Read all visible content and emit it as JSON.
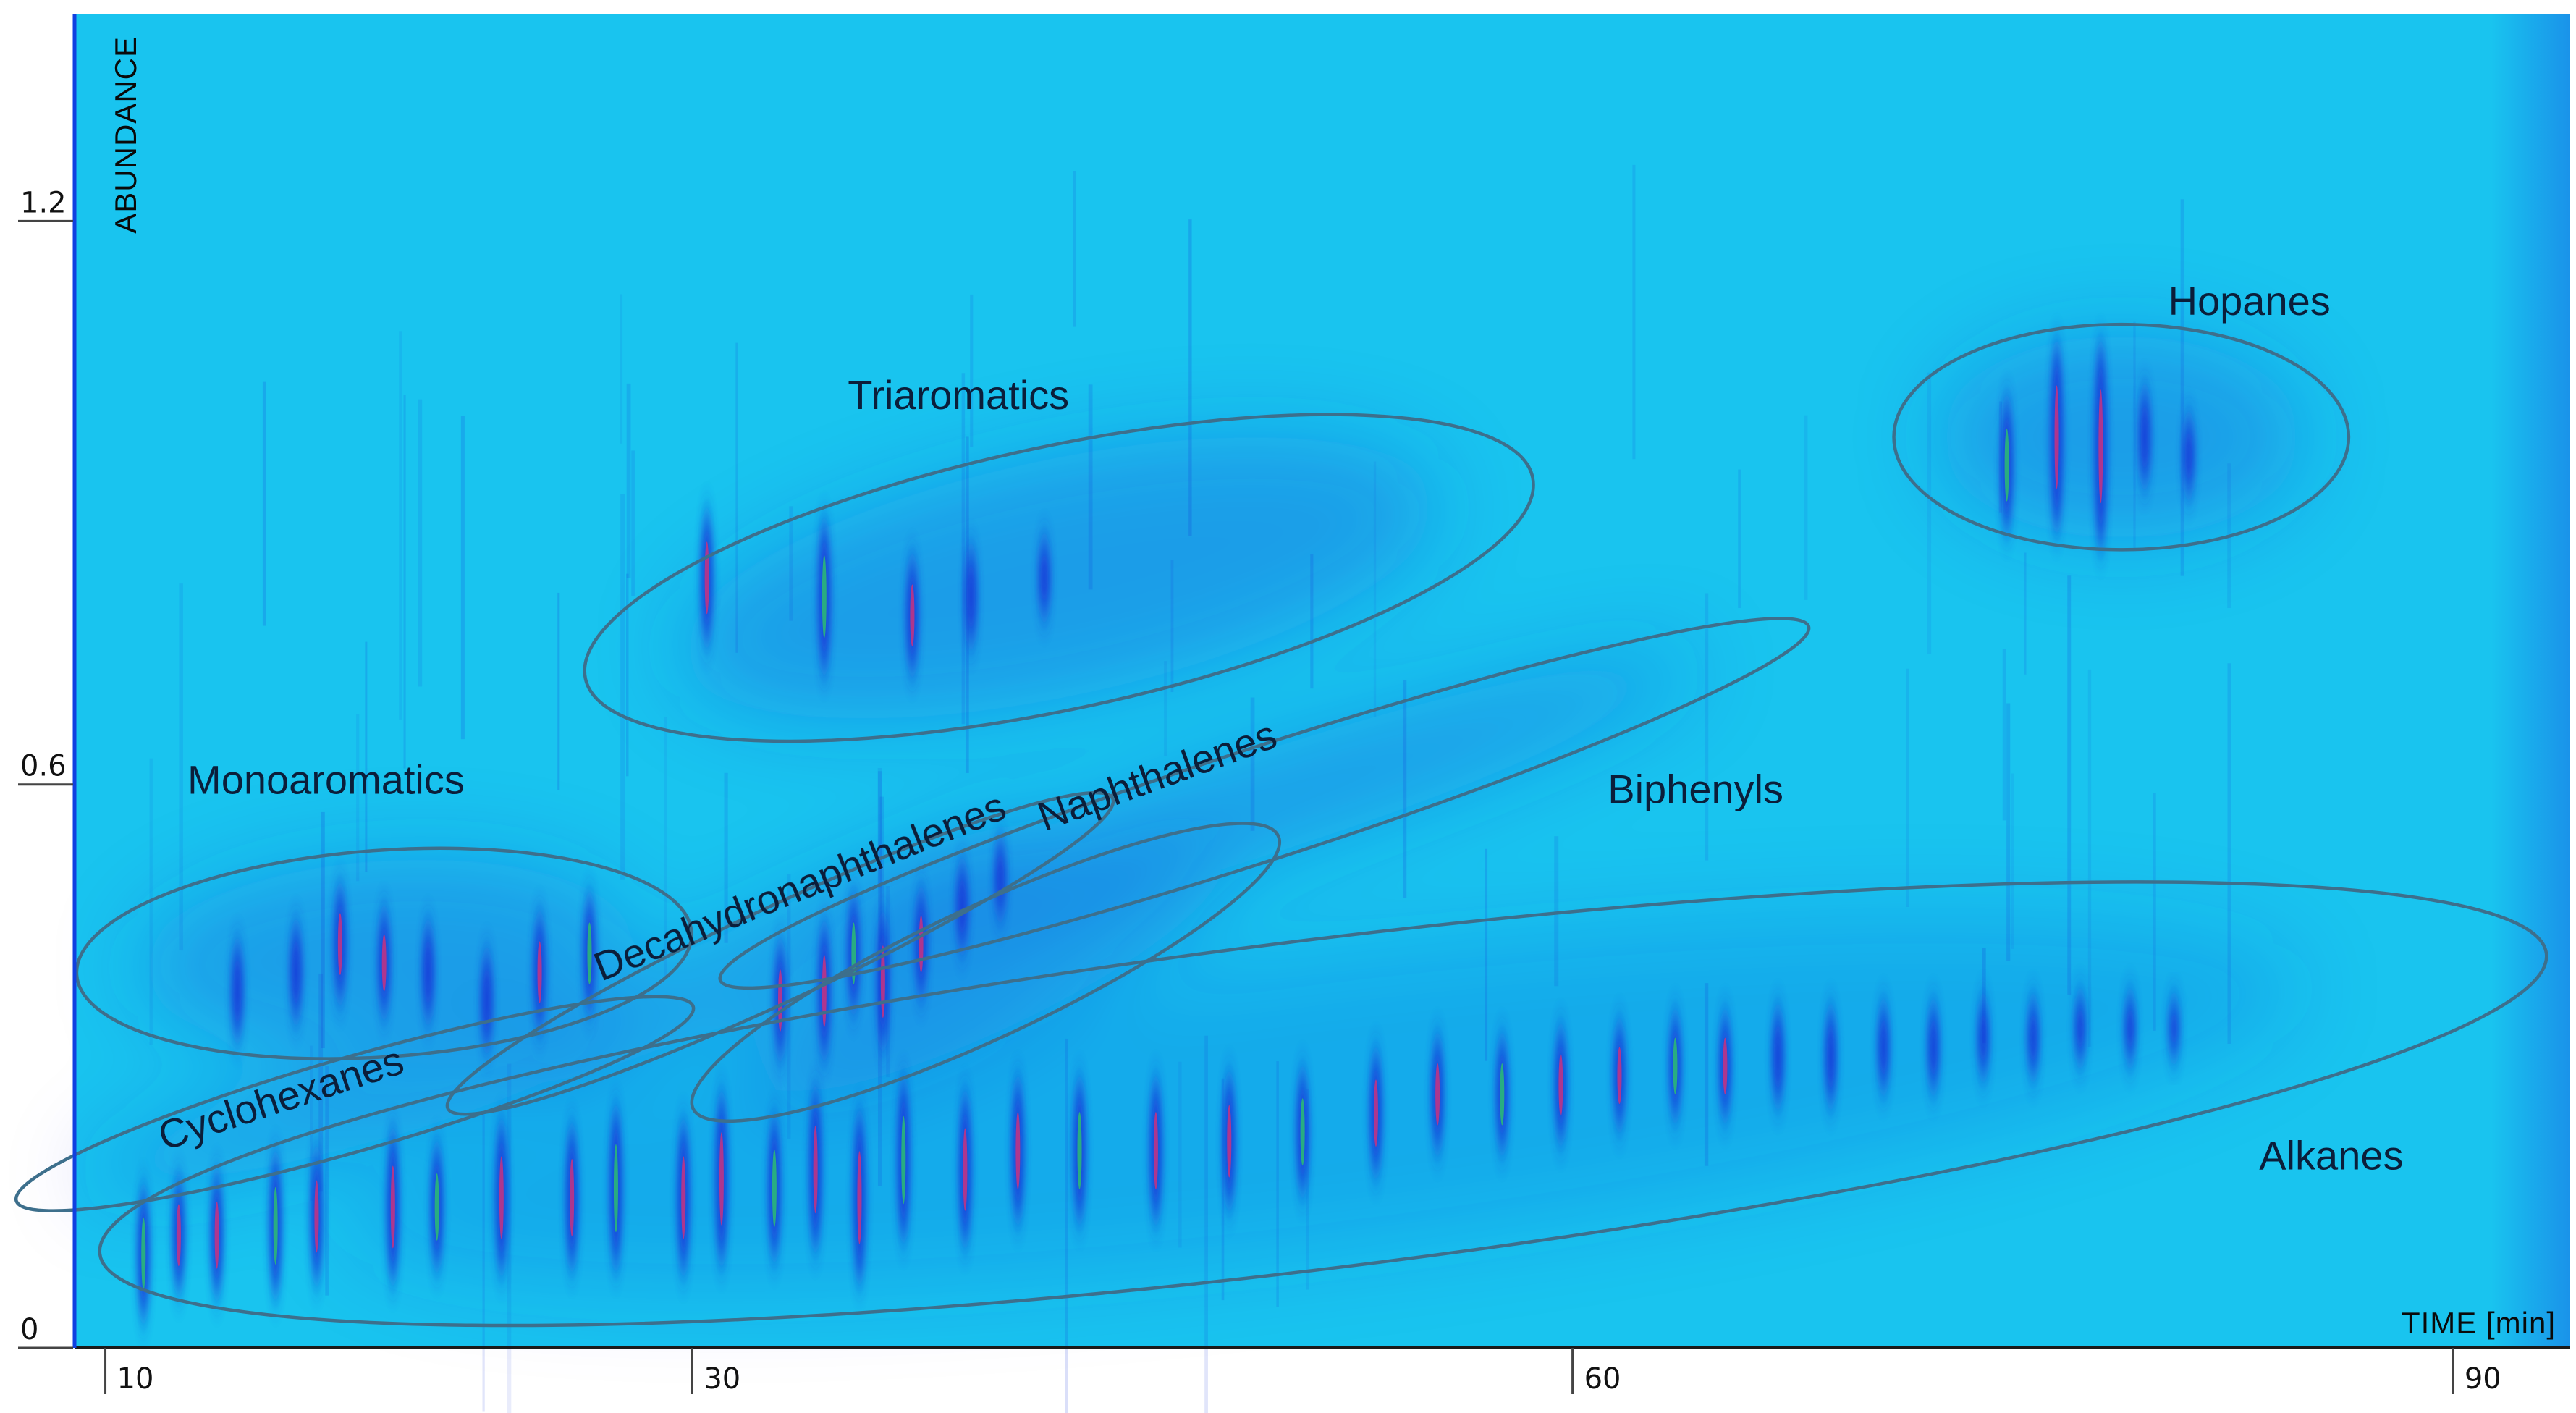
{
  "chart_data": {
    "type": "heatmap",
    "title": "",
    "xlabel": "TIME [min]",
    "ylabel": "ABUNDANCE",
    "x_ticks": [
      "10",
      "30",
      "60",
      "90"
    ],
    "y_ticks": [
      "0",
      "0.6",
      "1.2"
    ],
    "xlim": [
      9,
      94
    ],
    "ylim": [
      0,
      1.42
    ],
    "colors": {
      "background": "#19c4ef",
      "peak": "#1535d8",
      "peak_core": "#d4307a",
      "peak_core_alt": "#2ec46a",
      "ellipse": "#3d6f8c",
      "axis": "#1a1a1a"
    },
    "regions": [
      {
        "label": "Triaromatics",
        "cx": 42.5,
        "cy": 0.82,
        "w": 33.0,
        "h": 0.28,
        "angle": -12,
        "label_x": 35.3,
        "label_y": 1.0,
        "label_angle": 0
      },
      {
        "label": "Hopanes",
        "cx": 78.7,
        "cy": 0.97,
        "w": 15.5,
        "h": 0.24,
        "angle": 0,
        "label_x": 80.3,
        "label_y": 1.1,
        "label_angle": 0
      },
      {
        "label": "Biphenyls",
        "cx": 49.5,
        "cy": 0.58,
        "w": 39.0,
        "h": 0.12,
        "angle": -18,
        "label_x": 61.2,
        "label_y": 0.58,
        "label_angle": 0
      },
      {
        "label": "Monoaromatics",
        "cx": 19.5,
        "cy": 0.42,
        "w": 21.0,
        "h": 0.22,
        "angle": -4,
        "label_x": 12.8,
        "label_y": 0.59,
        "label_angle": 0
      },
      {
        "label": "Decahydronaphthalenes",
        "cx": 33.0,
        "cy": 0.42,
        "w": 25.0,
        "h": 0.1,
        "angle": -25,
        "label_x": 26.9,
        "label_y": 0.39,
        "label_angle": -22
      },
      {
        "label": "Naphthalenes",
        "cx": 40.0,
        "cy": 0.4,
        "w": 22.0,
        "h": 0.14,
        "angle": -25,
        "label_x": 42.0,
        "label_y": 0.55,
        "label_angle": -20
      },
      {
        "label": "Cyclohexanes",
        "cx": 18.5,
        "cy": 0.26,
        "w": 24.0,
        "h": 0.1,
        "angle": -16,
        "label_x": 12.0,
        "label_y": 0.21,
        "label_angle": -18
      },
      {
        "label": "Alkanes",
        "cx": 51.5,
        "cy": 0.26,
        "w": 84.0,
        "h": 0.35,
        "angle": -7,
        "label_x": 83.4,
        "label_y": 0.19,
        "label_angle": 0
      }
    ],
    "peaks": [
      {
        "x": 11.3,
        "y": 0.1,
        "h": 0.14
      },
      {
        "x": 12.5,
        "y": 0.12,
        "h": 0.12
      },
      {
        "x": 13.8,
        "y": 0.12,
        "h": 0.13
      },
      {
        "x": 15.8,
        "y": 0.13,
        "h": 0.15
      },
      {
        "x": 17.2,
        "y": 0.14,
        "h": 0.14
      },
      {
        "x": 19.8,
        "y": 0.15,
        "h": 0.16
      },
      {
        "x": 21.3,
        "y": 0.15,
        "h": 0.13
      },
      {
        "x": 23.5,
        "y": 0.16,
        "h": 0.16
      },
      {
        "x": 25.9,
        "y": 0.16,
        "h": 0.15
      },
      {
        "x": 27.4,
        "y": 0.17,
        "h": 0.17
      },
      {
        "x": 29.7,
        "y": 0.16,
        "h": 0.16
      },
      {
        "x": 31.0,
        "y": 0.18,
        "h": 0.18
      },
      {
        "x": 32.8,
        "y": 0.17,
        "h": 0.15
      },
      {
        "x": 34.2,
        "y": 0.19,
        "h": 0.17
      },
      {
        "x": 35.7,
        "y": 0.16,
        "h": 0.18
      },
      {
        "x": 37.2,
        "y": 0.2,
        "h": 0.17
      },
      {
        "x": 39.3,
        "y": 0.19,
        "h": 0.16
      },
      {
        "x": 41.1,
        "y": 0.21,
        "h": 0.15
      },
      {
        "x": 43.2,
        "y": 0.21,
        "h": 0.15
      },
      {
        "x": 45.8,
        "y": 0.21,
        "h": 0.15
      },
      {
        "x": 48.3,
        "y": 0.22,
        "h": 0.14
      },
      {
        "x": 50.8,
        "y": 0.23,
        "h": 0.13
      },
      {
        "x": 53.3,
        "y": 0.25,
        "h": 0.13
      },
      {
        "x": 55.4,
        "y": 0.27,
        "h": 0.12
      },
      {
        "x": 57.6,
        "y": 0.27,
        "h": 0.12
      },
      {
        "x": 59.6,
        "y": 0.28,
        "h": 0.12
      },
      {
        "x": 61.6,
        "y": 0.29,
        "h": 0.11
      },
      {
        "x": 63.5,
        "y": 0.3,
        "h": 0.11
      },
      {
        "x": 65.2,
        "y": 0.3,
        "h": 0.11
      },
      {
        "x": 67.0,
        "y": 0.31,
        "h": 0.1
      },
      {
        "x": 68.8,
        "y": 0.31,
        "h": 0.1
      },
      {
        "x": 70.6,
        "y": 0.32,
        "h": 0.09
      },
      {
        "x": 72.3,
        "y": 0.32,
        "h": 0.09
      },
      {
        "x": 74.0,
        "y": 0.33,
        "h": 0.08
      },
      {
        "x": 75.7,
        "y": 0.33,
        "h": 0.08
      },
      {
        "x": 77.3,
        "y": 0.34,
        "h": 0.07
      },
      {
        "x": 79.0,
        "y": 0.34,
        "h": 0.07
      },
      {
        "x": 80.5,
        "y": 0.34,
        "h": 0.06
      },
      {
        "x": 14.5,
        "y": 0.38,
        "h": 0.1
      },
      {
        "x": 16.5,
        "y": 0.4,
        "h": 0.1
      },
      {
        "x": 18.0,
        "y": 0.43,
        "h": 0.12
      },
      {
        "x": 19.5,
        "y": 0.41,
        "h": 0.11
      },
      {
        "x": 21.0,
        "y": 0.4,
        "h": 0.1
      },
      {
        "x": 23.0,
        "y": 0.37,
        "h": 0.1
      },
      {
        "x": 24.8,
        "y": 0.4,
        "h": 0.12
      },
      {
        "x": 26.5,
        "y": 0.42,
        "h": 0.12
      },
      {
        "x": 33.0,
        "y": 0.37,
        "h": 0.12
      },
      {
        "x": 34.5,
        "y": 0.38,
        "h": 0.14
      },
      {
        "x": 35.5,
        "y": 0.42,
        "h": 0.12
      },
      {
        "x": 36.5,
        "y": 0.39,
        "h": 0.14
      },
      {
        "x": 37.8,
        "y": 0.43,
        "h": 0.11
      },
      {
        "x": 39.2,
        "y": 0.47,
        "h": 0.09
      },
      {
        "x": 40.5,
        "y": 0.5,
        "h": 0.08
      },
      {
        "x": 30.5,
        "y": 0.82,
        "h": 0.14
      },
      {
        "x": 34.5,
        "y": 0.8,
        "h": 0.16
      },
      {
        "x": 37.5,
        "y": 0.78,
        "h": 0.12
      },
      {
        "x": 39.5,
        "y": 0.8,
        "h": 0.1
      },
      {
        "x": 42.0,
        "y": 0.82,
        "h": 0.08
      },
      {
        "x": 76.5,
        "y": 0.97,
        "h": 0.2
      },
      {
        "x": 78.0,
        "y": 0.96,
        "h": 0.22
      },
      {
        "x": 74.8,
        "y": 0.94,
        "h": 0.14
      },
      {
        "x": 79.5,
        "y": 0.97,
        "h": 0.1
      },
      {
        "x": 81.0,
        "y": 0.95,
        "h": 0.08
      }
    ]
  }
}
